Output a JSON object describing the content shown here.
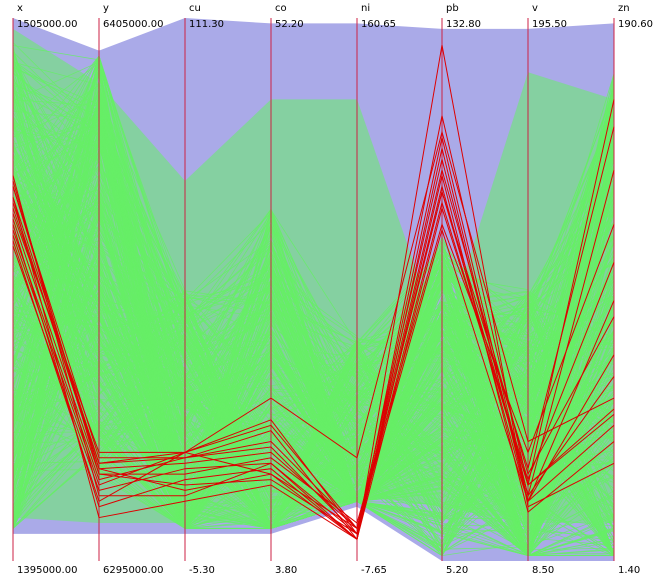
{
  "chart_data": {
    "type": "parallel_coordinates",
    "dimensions": [
      {
        "name": "x",
        "max_label": "1505000.00",
        "min_label": "1395000.00",
        "max": 1505000,
        "min": 1395000
      },
      {
        "name": "y",
        "max_label": "6405000.00",
        "min_label": "6295000.00",
        "max": 6405000,
        "min": 6295000
      },
      {
        "name": "cu",
        "max_label": "111.30",
        "min_label": "-5.30",
        "max": 111.3,
        "min": -5.3
      },
      {
        "name": "co",
        "max_label": "52.20",
        "min_label": "3.80",
        "max": 52.2,
        "min": 3.8
      },
      {
        "name": "ni",
        "max_label": "160.65",
        "min_label": "-7.65",
        "max": 160.65,
        "min": -7.65
      },
      {
        "name": "pb",
        "max_label": "132.80",
        "min_label": "5.20",
        "max": 132.8,
        "min": 5.2
      },
      {
        "name": "v",
        "max_label": "195.50",
        "min_label": "8.50",
        "max": 195.5,
        "min": 8.5
      },
      {
        "name": "zn",
        "max_label": "190.60",
        "min_label": "1.40",
        "max": 190.6,
        "min": 1.4
      }
    ],
    "envelope": {
      "upper_fraction": [
        1.0,
        0.94,
        1.0,
        0.99,
        0.99,
        0.98,
        0.98,
        0.99
      ],
      "lower_fraction": [
        0.05,
        0.05,
        0.05,
        0.05,
        0.1,
        0.0,
        0.0,
        0.0
      ]
    },
    "highlighted_series_fraction": [
      [
        0.69,
        0.19,
        0.19,
        0.21,
        0.05,
        0.66,
        0.14,
        0.85
      ],
      [
        0.65,
        0.18,
        0.19,
        0.22,
        0.06,
        0.68,
        0.17,
        0.8
      ],
      [
        0.66,
        0.17,
        0.18,
        0.2,
        0.06,
        0.74,
        0.12,
        0.72
      ],
      [
        0.63,
        0.16,
        0.16,
        0.19,
        0.07,
        0.62,
        0.2,
        0.62
      ],
      [
        0.61,
        0.15,
        0.19,
        0.24,
        0.04,
        0.65,
        0.15,
        0.55
      ],
      [
        0.6,
        0.14,
        0.2,
        0.26,
        0.05,
        0.69,
        0.11,
        0.48
      ],
      [
        0.58,
        0.13,
        0.17,
        0.18,
        0.05,
        0.72,
        0.16,
        0.45
      ],
      [
        0.69,
        0.17,
        0.13,
        0.16,
        0.04,
        0.76,
        0.11,
        0.38
      ],
      [
        0.7,
        0.16,
        0.14,
        0.15,
        0.05,
        0.78,
        0.12,
        0.34
      ],
      [
        0.64,
        0.2,
        0.2,
        0.3,
        0.19,
        0.79,
        0.22,
        0.3
      ],
      [
        0.71,
        0.12,
        0.12,
        0.18,
        0.04,
        0.82,
        0.14,
        0.27
      ],
      [
        0.62,
        0.1,
        0.15,
        0.17,
        0.04,
        0.71,
        0.09,
        0.22
      ],
      [
        0.67,
        0.08,
        0.11,
        0.14,
        0.04,
        0.95,
        0.1,
        0.18
      ],
      [
        0.59,
        0.11,
        0.2,
        0.16,
        0.06,
        0.68,
        0.14,
        0.28
      ],
      [
        0.67,
        0.18,
        0.2,
        0.25,
        0.06,
        0.61,
        0.11,
        0.25
      ]
    ],
    "colors": {
      "envelope": "#aaaae8",
      "lines": "#66ee66",
      "highlight": "#dd0000",
      "axes": "#cc2244"
    }
  }
}
